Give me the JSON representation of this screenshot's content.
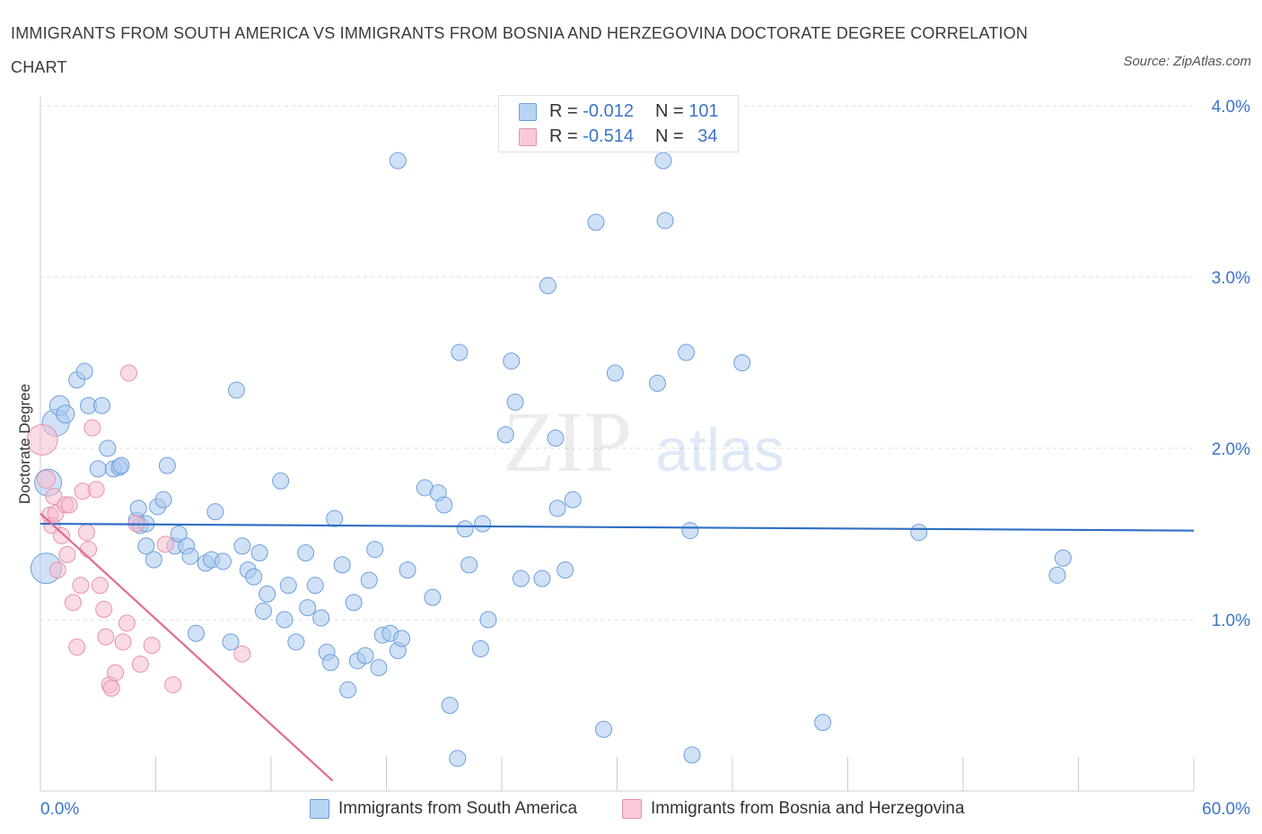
{
  "title": "IMMIGRANTS FROM SOUTH AMERICA VS IMMIGRANTS FROM BOSNIA AND HERZEGOVINA DOCTORATE DEGREE CORRELATION CHART",
  "source": "Source: ZipAtlas.com",
  "watermark": {
    "zip": "ZIP",
    "atlas": "atlas"
  },
  "colors": {
    "blue_fill": "#a9c8ef",
    "blue_stroke": "#6d9fdc",
    "blue_line": "#2d6fc4",
    "pink_fill": "#f5bccf",
    "pink_stroke": "#e592ae",
    "pink_line": "#e06a94",
    "axis_text": "#3a74c9",
    "grid": "#dddddd"
  },
  "legend": {
    "rows": [
      {
        "r_label": "R =",
        "r_value": "-0.012",
        "n_label": "N =",
        "n_value": "101"
      },
      {
        "r_label": "R =",
        "r_value": "-0.514",
        "n_label": "N =",
        "n_value": "34"
      }
    ]
  },
  "bottom_legend": {
    "blue": "Immigrants from South America",
    "pink": "Immigrants from Bosnia and Herzegovina"
  },
  "chart_data": {
    "type": "scatter",
    "title": "IMMIGRANTS FROM SOUTH AMERICA VS IMMIGRANTS FROM BOSNIA AND HERZEGOVINA DOCTORATE DEGREE CORRELATION CHART",
    "xlabel": "",
    "ylabel": "Doctorate Degree",
    "xlim": [
      0,
      60
    ],
    "ylim": [
      0,
      4.0
    ],
    "x_tick_labels": [
      "0.0%",
      "60.0%"
    ],
    "y_ticks": [
      1.0,
      2.0,
      3.0,
      4.0
    ],
    "y_tick_labels": [
      "1.0%",
      "2.0%",
      "3.0%",
      "4.0%"
    ],
    "grid": true,
    "series": [
      {
        "name": "Immigrants from South America",
        "color": "blue",
        "trend": {
          "x": [
            0,
            60
          ],
          "y": [
            1.56,
            1.52
          ]
        },
        "points": [
          [
            0.3,
            1.3,
            16
          ],
          [
            0.4,
            1.8,
            14
          ],
          [
            0.8,
            2.15,
            14
          ],
          [
            1.0,
            2.25,
            10
          ],
          [
            1.3,
            2.2,
            9
          ],
          [
            1.9,
            2.4,
            8
          ],
          [
            2.3,
            2.45,
            8
          ],
          [
            2.5,
            2.25,
            8
          ],
          [
            3.0,
            1.88,
            8
          ],
          [
            3.2,
            2.25,
            8
          ],
          [
            3.5,
            2.0,
            8
          ],
          [
            3.8,
            1.88,
            8
          ],
          [
            4.1,
            1.89,
            8
          ],
          [
            4.2,
            1.9,
            8
          ],
          [
            5.0,
            1.58,
            8
          ],
          [
            5.1,
            1.65,
            8
          ],
          [
            5.2,
            1.55,
            8
          ],
          [
            5.5,
            1.56,
            8
          ],
          [
            5.5,
            1.43,
            8
          ],
          [
            5.9,
            1.35,
            8
          ],
          [
            6.1,
            1.66,
            8
          ],
          [
            6.4,
            1.7,
            8
          ],
          [
            6.6,
            1.9,
            8
          ],
          [
            7.0,
            1.43,
            8
          ],
          [
            7.2,
            1.5,
            8
          ],
          [
            7.6,
            1.43,
            8
          ],
          [
            7.8,
            1.37,
            8
          ],
          [
            8.1,
            0.92,
            8
          ],
          [
            8.6,
            1.33,
            8
          ],
          [
            8.9,
            1.35,
            8
          ],
          [
            9.1,
            1.63,
            8
          ],
          [
            9.5,
            1.34,
            8
          ],
          [
            9.9,
            0.87,
            8
          ],
          [
            10.2,
            2.34,
            8
          ],
          [
            10.5,
            1.43,
            8
          ],
          [
            10.8,
            1.29,
            8
          ],
          [
            11.1,
            1.25,
            8
          ],
          [
            11.4,
            1.39,
            8
          ],
          [
            11.6,
            1.05,
            8
          ],
          [
            11.8,
            1.15,
            8
          ],
          [
            12.5,
            1.81,
            8
          ],
          [
            12.7,
            1.0,
            8
          ],
          [
            12.9,
            1.2,
            8
          ],
          [
            13.3,
            0.87,
            8
          ],
          [
            13.8,
            1.39,
            8
          ],
          [
            13.9,
            1.07,
            8
          ],
          [
            14.3,
            1.2,
            8
          ],
          [
            14.6,
            1.01,
            8
          ],
          [
            14.9,
            0.81,
            8
          ],
          [
            15.1,
            0.75,
            8
          ],
          [
            15.3,
            1.59,
            8
          ],
          [
            15.7,
            1.32,
            8
          ],
          [
            16.0,
            0.59,
            8
          ],
          [
            16.3,
            1.1,
            8
          ],
          [
            16.5,
            0.76,
            8
          ],
          [
            16.9,
            0.79,
            8
          ],
          [
            17.1,
            1.23,
            8
          ],
          [
            17.4,
            1.41,
            8
          ],
          [
            17.6,
            0.72,
            8
          ],
          [
            17.8,
            0.91,
            8
          ],
          [
            18.2,
            0.92,
            8
          ],
          [
            18.6,
            0.82,
            8
          ],
          [
            18.8,
            0.89,
            8
          ],
          [
            19.1,
            1.29,
            8
          ],
          [
            20.0,
            1.77,
            8
          ],
          [
            20.4,
            1.13,
            8
          ],
          [
            20.7,
            1.74,
            8
          ],
          [
            21.0,
            1.67,
            8
          ],
          [
            21.3,
            0.5,
            8
          ],
          [
            21.7,
            0.19,
            8
          ],
          [
            21.8,
            2.56,
            8
          ],
          [
            22.1,
            1.53,
            8
          ],
          [
            22.3,
            1.32,
            8
          ],
          [
            22.9,
            0.83,
            8
          ],
          [
            23.0,
            1.56,
            8
          ],
          [
            23.3,
            1.0,
            8
          ],
          [
            24.2,
            2.08,
            8
          ],
          [
            24.5,
            2.51,
            8
          ],
          [
            24.7,
            2.27,
            8
          ],
          [
            25.0,
            1.24,
            8
          ],
          [
            26.1,
            1.24,
            8
          ],
          [
            26.8,
            2.06,
            8
          ],
          [
            26.9,
            1.65,
            8
          ],
          [
            27.3,
            1.29,
            8
          ],
          [
            27.7,
            1.7,
            8
          ],
          [
            28.9,
            3.32,
            8
          ],
          [
            29.3,
            0.36,
            8
          ],
          [
            29.9,
            2.44,
            8
          ],
          [
            32.1,
            2.38,
            8
          ],
          [
            32.4,
            3.68,
            8
          ],
          [
            32.5,
            3.33,
            8
          ],
          [
            33.6,
            2.56,
            8
          ],
          [
            33.8,
            1.52,
            8
          ],
          [
            33.9,
            0.21,
            8
          ],
          [
            36.5,
            2.5,
            8
          ],
          [
            40.7,
            0.4,
            8
          ],
          [
            45.7,
            1.51,
            8
          ],
          [
            52.9,
            1.26,
            8
          ],
          [
            53.2,
            1.36,
            8
          ],
          [
            18.6,
            3.68,
            8
          ],
          [
            26.4,
            2.95,
            8
          ]
        ]
      },
      {
        "name": "Immigrants from Bosnia and Herzegovina",
        "color": "pink",
        "trend": {
          "x": [
            0,
            15.2
          ],
          "y": [
            1.62,
            0.06
          ]
        },
        "points": [
          [
            0.1,
            2.05,
            16
          ],
          [
            0.3,
            1.82,
            9
          ],
          [
            0.5,
            1.61,
            8
          ],
          [
            0.6,
            1.55,
            8
          ],
          [
            0.7,
            1.72,
            8
          ],
          [
            0.8,
            1.62,
            8
          ],
          [
            0.9,
            1.29,
            8
          ],
          [
            1.1,
            1.49,
            8
          ],
          [
            1.3,
            1.67,
            8
          ],
          [
            1.4,
            1.38,
            8
          ],
          [
            1.5,
            1.67,
            8
          ],
          [
            1.7,
            1.1,
            8
          ],
          [
            1.9,
            0.84,
            8
          ],
          [
            2.1,
            1.2,
            8
          ],
          [
            2.2,
            1.75,
            8
          ],
          [
            2.4,
            1.51,
            8
          ],
          [
            2.5,
            1.41,
            8
          ],
          [
            2.7,
            2.12,
            8
          ],
          [
            2.9,
            1.76,
            8
          ],
          [
            3.1,
            1.2,
            8
          ],
          [
            3.3,
            1.06,
            8
          ],
          [
            3.4,
            0.9,
            8
          ],
          [
            3.6,
            0.62,
            8
          ],
          [
            3.7,
            0.6,
            8
          ],
          [
            3.9,
            0.69,
            8
          ],
          [
            4.3,
            0.87,
            8
          ],
          [
            4.5,
            0.98,
            8
          ],
          [
            4.6,
            2.44,
            8
          ],
          [
            5.0,
            1.56,
            8
          ],
          [
            5.2,
            0.74,
            8
          ],
          [
            5.8,
            0.85,
            8
          ],
          [
            6.5,
            1.44,
            8
          ],
          [
            6.9,
            0.62,
            8
          ],
          [
            10.5,
            0.8,
            8
          ]
        ]
      }
    ]
  }
}
